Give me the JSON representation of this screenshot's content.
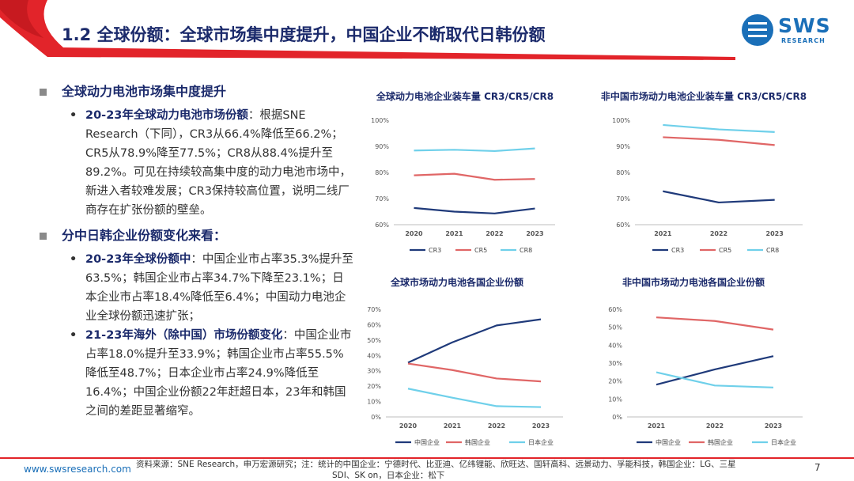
{
  "header": {
    "title": "1.2 全球份额：全球市场集中度提升，中国企业不断取代日韩份额",
    "logo_text": "SWS",
    "logo_sub": "RESEARCH",
    "accent_color": "#e2242a",
    "title_color": "#1b2a6b"
  },
  "sections": [
    {
      "heading": "全球动力电池市场集中度提升",
      "items": [
        {
          "lead": "20-23年全球动力电池市场份额",
          "text": "：根据SNE Research（下同），CR3从66.4%降低至66.2%；CR5从78.9%降至77.5%；CR8从88.4%提升至89.2%。可见在持续较高集中度的动力电池市场中，新进入者较难发展；CR3保持较高位置，说明二线厂商存在扩张份额的壁垒。"
        }
      ]
    },
    {
      "heading": "分中日韩企业份额变化来看：",
      "items": [
        {
          "lead": "20-23年全球份额中",
          "text": "：中国企业市占率35.3%提升至63.5%；韩国企业市占率34.7%下降至23.1%；日本企业市占率18.4%降低至6.4%；中国动力电池企业全球份额迅速扩张；"
        },
        {
          "lead": "21-23年海外（除中国）市场份额变化",
          "text": "：中国企业市占率18.0%提升至33.9%；韩国企业市占率55.5%降低至48.7%；日本企业市占率24.9%降低至16.4%；中国企业份额22年赶超日本，23年和韩国之间的差距显著缩窄。"
        }
      ]
    }
  ],
  "chart_data": [
    {
      "type": "line",
      "title": "全球动力电池企业装车量 CR3/CR5/CR8",
      "categories": [
        "2020",
        "2021",
        "2022",
        "2023"
      ],
      "ylim": [
        60,
        100
      ],
      "yticks": [
        "60%",
        "70%",
        "80%",
        "90%",
        "100%"
      ],
      "ytick_values": [
        60,
        70,
        80,
        90,
        100
      ],
      "series": [
        {
          "name": "CR3",
          "color": "#1f3a7a",
          "values": [
            66.4,
            65.0,
            64.3,
            66.2
          ]
        },
        {
          "name": "CR5",
          "color": "#e06666",
          "values": [
            78.9,
            79.5,
            77.2,
            77.5
          ]
        },
        {
          "name": "CR8",
          "color": "#6fd0ea",
          "values": [
            88.4,
            88.7,
            88.2,
            89.2
          ]
        }
      ]
    },
    {
      "type": "line",
      "title": "非中国市场动力电池企业装车量 CR3/CR5/CR8",
      "categories": [
        "2021",
        "2022",
        "2023"
      ],
      "ylim": [
        60,
        100
      ],
      "yticks": [
        "60%",
        "70%",
        "80%",
        "90%",
        "100%"
      ],
      "ytick_values": [
        60,
        70,
        80,
        90,
        100
      ],
      "series": [
        {
          "name": "CR3",
          "color": "#1f3a7a",
          "values": [
            72.8,
            68.5,
            69.5
          ]
        },
        {
          "name": "CR5",
          "color": "#e06666",
          "values": [
            93.5,
            92.5,
            90.5
          ]
        },
        {
          "name": "CR8",
          "color": "#6fd0ea",
          "values": [
            98.2,
            96.5,
            95.5
          ]
        }
      ]
    },
    {
      "type": "line",
      "title": "全球市场动力电池各国企业份额",
      "categories": [
        "2020",
        "2021",
        "2022",
        "2023"
      ],
      "ylim": [
        0,
        70
      ],
      "yticks": [
        "0%",
        "10%",
        "20%",
        "30%",
        "40%",
        "50%",
        "60%",
        "70%"
      ],
      "ytick_values": [
        0,
        10,
        20,
        30,
        40,
        50,
        60,
        70
      ],
      "series": [
        {
          "name": "中国企业",
          "color": "#1f3a7a",
          "values": [
            35.3,
            48.5,
            59.5,
            63.5
          ]
        },
        {
          "name": "韩国企业",
          "color": "#e06666",
          "values": [
            34.7,
            30.5,
            25.0,
            23.1
          ]
        },
        {
          "name": "日本企业",
          "color": "#6fd0ea",
          "values": [
            18.4,
            12.5,
            7.0,
            6.4
          ]
        }
      ]
    },
    {
      "type": "line",
      "title": "非中国市场动力电池各国企业份额",
      "categories": [
        "2021",
        "2022",
        "2023"
      ],
      "ylim": [
        0,
        60
      ],
      "yticks": [
        "0%",
        "10%",
        "20%",
        "30%",
        "40%",
        "50%",
        "60%"
      ],
      "ytick_values": [
        0,
        10,
        20,
        30,
        40,
        50,
        60
      ],
      "series": [
        {
          "name": "中国企业",
          "color": "#1f3a7a",
          "values": [
            18.0,
            26.5,
            33.9
          ]
        },
        {
          "name": "韩国企业",
          "color": "#e06666",
          "values": [
            55.5,
            53.5,
            48.7
          ]
        },
        {
          "name": "日本企业",
          "color": "#6fd0ea",
          "values": [
            24.9,
            17.5,
            16.4
          ]
        }
      ]
    }
  ],
  "footer": {
    "url": "www.swsresearch.com",
    "source_line1": "资料来源：SNE Research，申万宏源研究；注：统计的中国企业：宁德时代、比亚迪、亿纬锂能、欣旺达、国轩高科、远景动力、孚能科技，韩国企业：LG、三星",
    "source_line2": "SDI、SK on，日本企业：松下",
    "page": "7"
  }
}
